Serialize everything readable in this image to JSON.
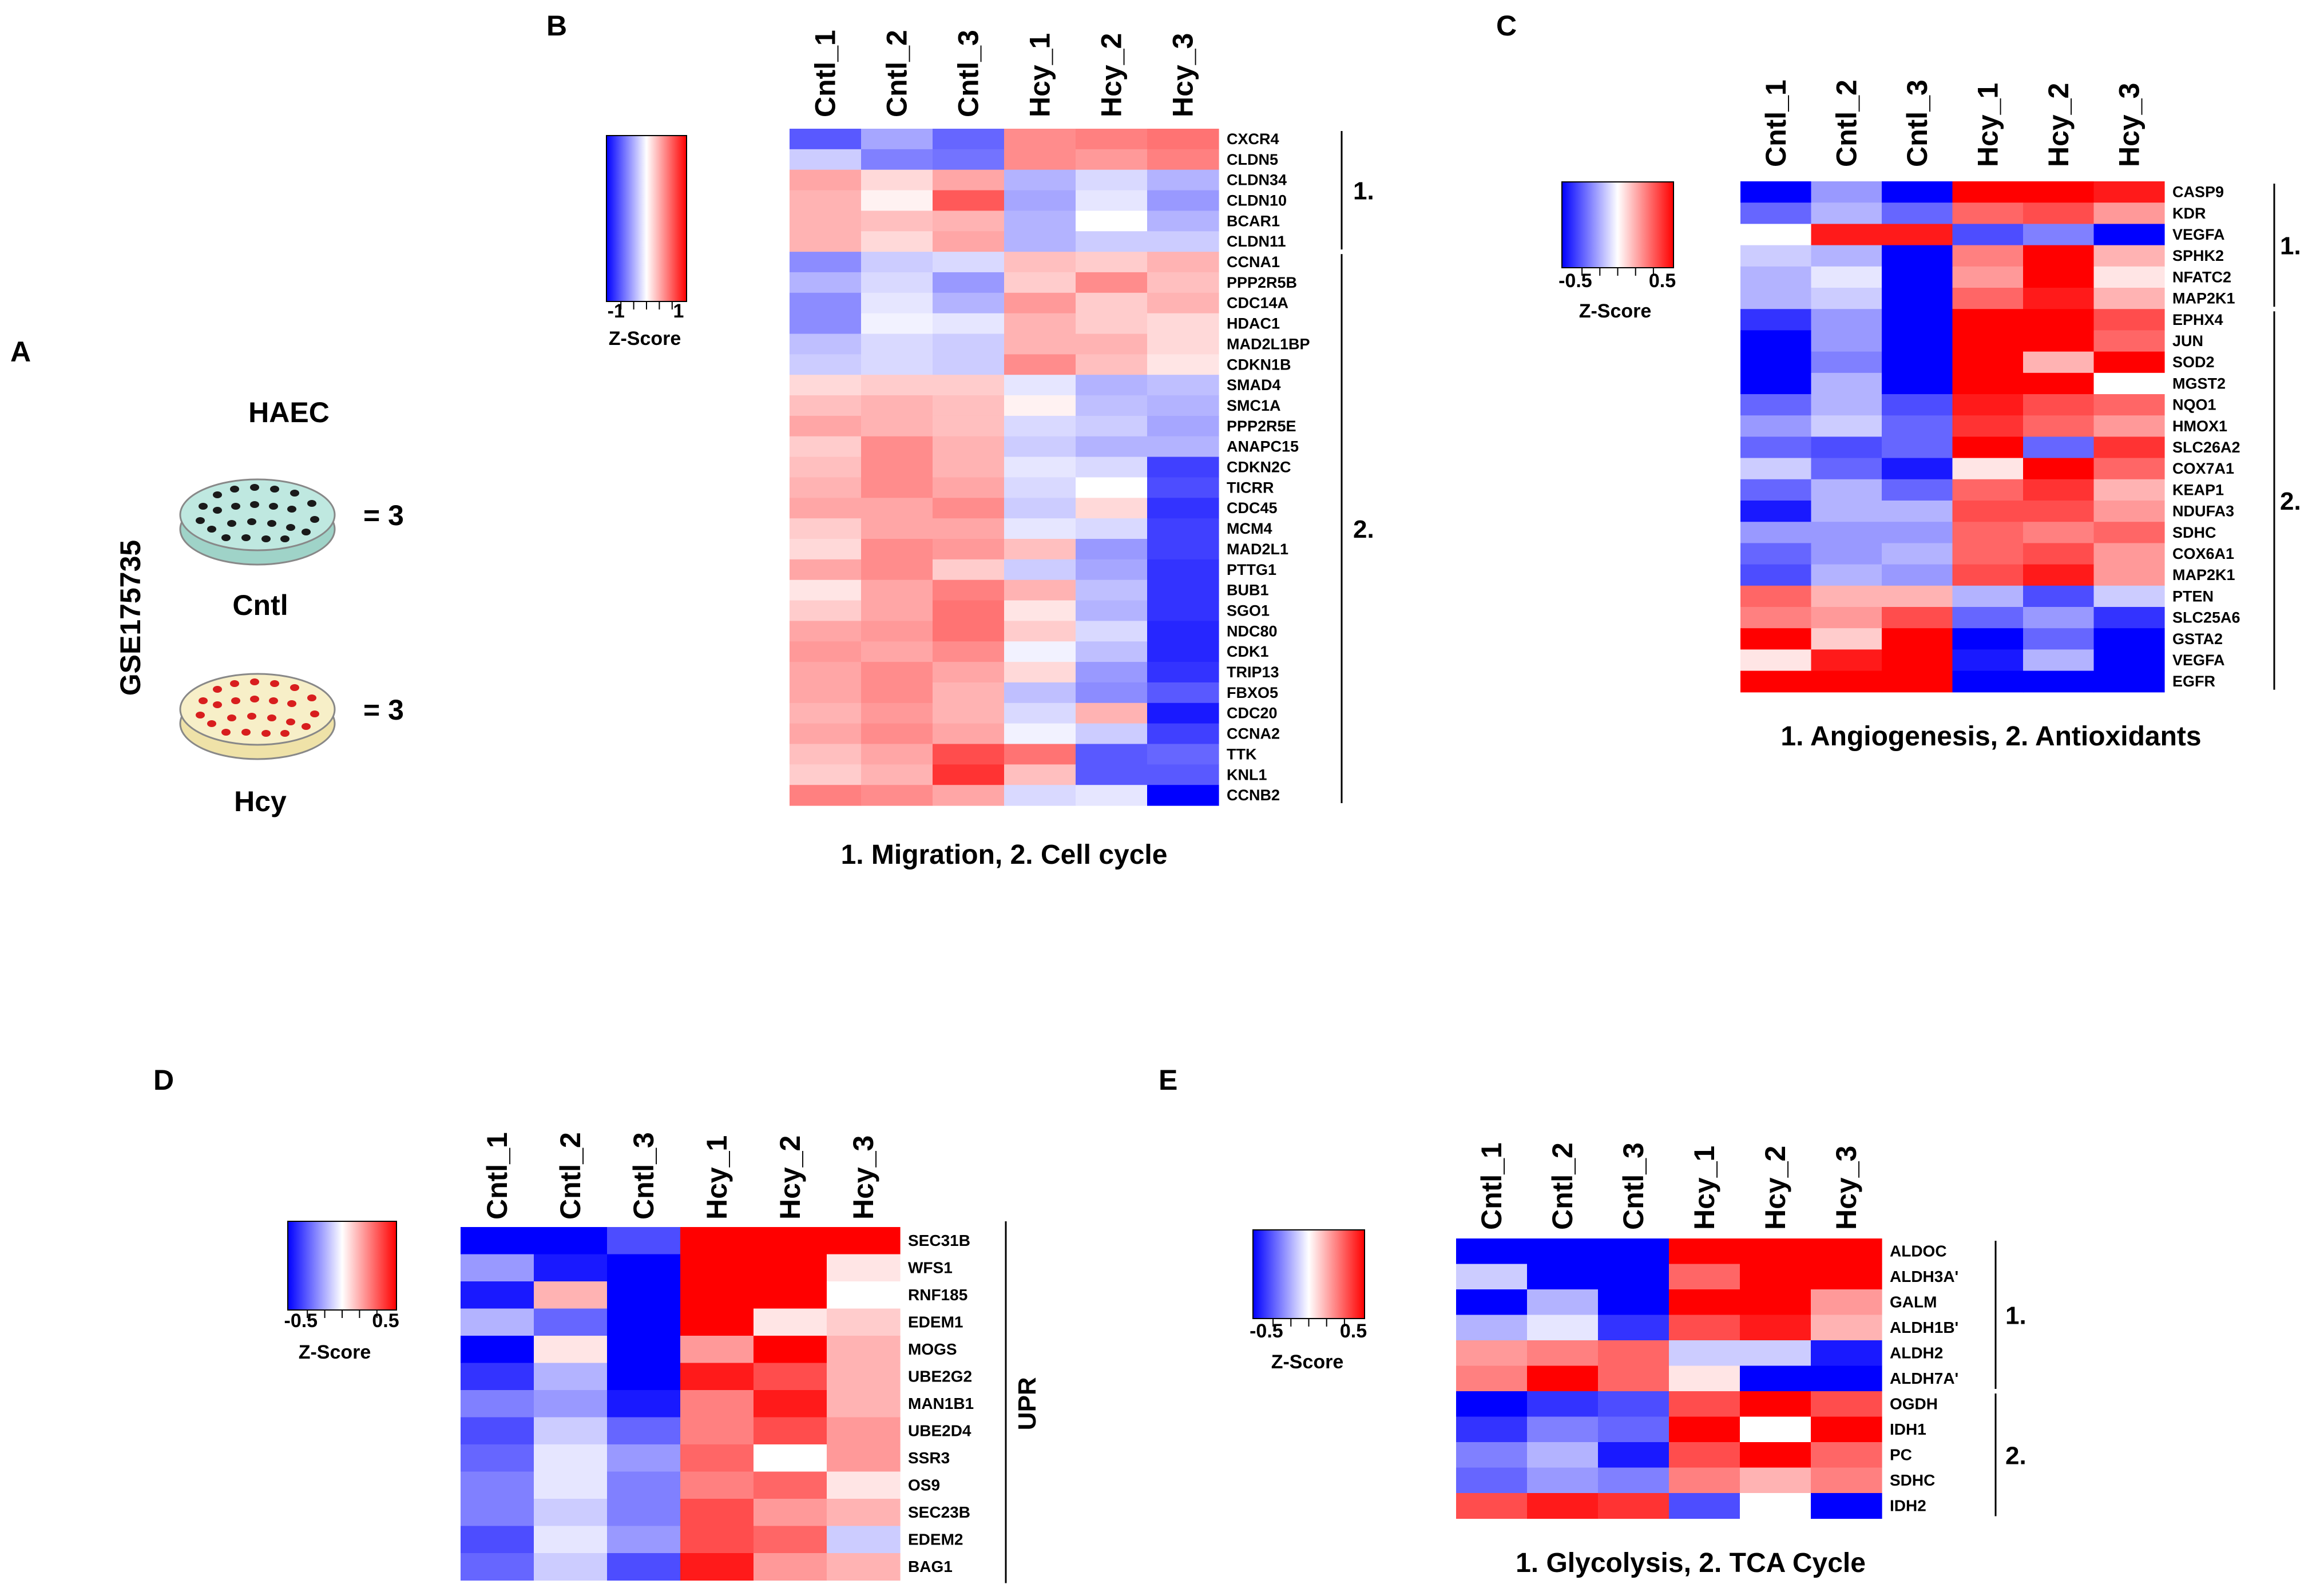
{
  "panel_a": {
    "letter": "A",
    "dataset": "GSE175735",
    "cell_type": "HAEC",
    "groups": [
      {
        "label": "Cntl",
        "count_text": "= 3",
        "plate_color": "#bfe8e0",
        "dot_color": "#1a1a1a"
      },
      {
        "label": "Hcy",
        "count_text": "= 3",
        "plate_color": "#f7efc8",
        "dot_color": "#d81e1e"
      }
    ]
  },
  "colors": {
    "low": "#0000ff",
    "mid": "#ffffff",
    "high": "#ff0000"
  },
  "chart_data": [
    {
      "type": "heatmap",
      "panel": "B",
      "columns": [
        "Cntl_1",
        "Cntl_2",
        "Cntl_3",
        "Hcy_1",
        "Hcy_2",
        "Hcy_3"
      ],
      "legend": {
        "min": -1,
        "max": 1,
        "min_label": "-1",
        "max_label": "1",
        "title": "Z-Score"
      },
      "caption": "1. Migration, 2. Cell cycle",
      "groups": [
        {
          "label": "1.",
          "start": 0,
          "end": 5
        },
        {
          "label": "2.",
          "start": 6,
          "end": 32
        }
      ],
      "rows": [
        "CXCR4",
        "CLDN5",
        "CLDN34",
        "CLDN10",
        "BCAR1",
        "CLDN11",
        "CCNA1",
        "PPP2R5B",
        "CDC14A",
        "HDAC1",
        "MAD2L1BP",
        "CDKN1B",
        "SMAD4",
        "SMC1A",
        "PPP2R5E",
        "ANAPC15",
        "CDKN2C",
        "TICRR",
        "CDC45",
        "MCM4",
        "MAD2L1",
        "PTTG1",
        "BUB1",
        "SGO1",
        "NDC80",
        "CDK1",
        "TRIP13",
        "FBXO5",
        "CDC20",
        "CCNA2",
        "TTK",
        "KNL1",
        "CCNB2"
      ],
      "values": [
        [
          -0.65,
          -0.35,
          -0.6,
          0.45,
          0.5,
          0.55
        ],
        [
          -0.2,
          -0.5,
          -0.55,
          0.45,
          0.4,
          0.5
        ],
        [
          0.35,
          0.15,
          0.35,
          -0.3,
          -0.15,
          -0.3
        ],
        [
          0.3,
          0.05,
          0.65,
          -0.35,
          -0.1,
          -0.4
        ],
        [
          0.3,
          0.25,
          0.3,
          -0.3,
          0.0,
          -0.3
        ],
        [
          0.3,
          0.15,
          0.35,
          -0.3,
          -0.2,
          -0.2
        ],
        [
          -0.45,
          -0.2,
          -0.15,
          0.25,
          0.2,
          0.3
        ],
        [
          -0.3,
          -0.15,
          -0.4,
          0.2,
          0.45,
          0.25
        ],
        [
          -0.45,
          -0.1,
          -0.3,
          0.4,
          0.2,
          0.3
        ],
        [
          -0.45,
          -0.05,
          -0.1,
          0.3,
          0.2,
          0.15
        ],
        [
          -0.25,
          -0.15,
          -0.2,
          0.3,
          0.3,
          0.15
        ],
        [
          -0.2,
          -0.15,
          -0.2,
          0.45,
          0.25,
          0.1
        ],
        [
          0.15,
          0.2,
          0.2,
          -0.1,
          -0.3,
          -0.25
        ],
        [
          0.25,
          0.3,
          0.25,
          0.05,
          -0.25,
          -0.3
        ],
        [
          0.35,
          0.3,
          0.25,
          -0.15,
          -0.2,
          -0.35
        ],
        [
          0.2,
          0.45,
          0.3,
          -0.2,
          -0.3,
          -0.3
        ],
        [
          0.25,
          0.45,
          0.3,
          -0.1,
          -0.15,
          -0.75
        ],
        [
          0.3,
          0.45,
          0.35,
          -0.15,
          0.0,
          -0.7
        ],
        [
          0.35,
          0.35,
          0.45,
          -0.2,
          0.15,
          -0.8
        ],
        [
          0.2,
          0.35,
          0.35,
          -0.1,
          -0.15,
          -0.75
        ],
        [
          0.15,
          0.45,
          0.4,
          0.25,
          -0.4,
          -0.75
        ],
        [
          0.35,
          0.45,
          0.2,
          -0.2,
          -0.35,
          -0.8
        ],
        [
          0.1,
          0.35,
          0.5,
          0.3,
          -0.25,
          -0.8
        ],
        [
          0.2,
          0.35,
          0.55,
          0.1,
          -0.3,
          -0.8
        ],
        [
          0.35,
          0.4,
          0.55,
          0.2,
          -0.15,
          -0.85
        ],
        [
          0.4,
          0.35,
          0.45,
          -0.05,
          -0.25,
          -0.85
        ],
        [
          0.35,
          0.45,
          0.35,
          0.15,
          -0.4,
          -0.8
        ],
        [
          0.35,
          0.45,
          0.3,
          -0.25,
          -0.45,
          -0.65
        ],
        [
          0.3,
          0.4,
          0.3,
          -0.15,
          0.3,
          -0.9
        ],
        [
          0.35,
          0.45,
          0.35,
          -0.05,
          -0.2,
          -0.75
        ],
        [
          0.25,
          0.35,
          0.7,
          0.55,
          -0.65,
          -0.6
        ],
        [
          0.2,
          0.3,
          0.8,
          0.25,
          -0.65,
          -0.65
        ],
        [
          0.5,
          0.45,
          0.35,
          -0.15,
          -0.1,
          -1.0
        ]
      ]
    },
    {
      "type": "heatmap",
      "panel": "C",
      "columns": [
        "Cntl_1",
        "Cntl_2",
        "Cntl_3",
        "Hcy_1",
        "Hcy_2",
        "Hcy_3"
      ],
      "legend": {
        "min": -0.5,
        "max": 0.5,
        "min_label": "-0.5",
        "max_label": "0.5",
        "title": "Z-Score"
      },
      "caption": "1. Angiogenesis, 2. Antioxidants",
      "groups": [
        {
          "label": "1.",
          "start": 0,
          "end": 5
        },
        {
          "label": "2.",
          "start": 6,
          "end": 23
        }
      ],
      "rows": [
        "CASP9",
        "KDR",
        "VEGFA",
        "SPHK2",
        "NFATC2",
        "MAP2K1",
        "EPHX4",
        "JUN",
        "SOD2",
        "MGST2",
        "NQO1",
        "HMOX1",
        "SLC26A2",
        "COX7A1",
        "KEAP1",
        "NDUFA3",
        "SDHC",
        "COX6A1",
        "MAP2K1",
        "PTEN",
        "SLC25A6",
        "GSTA2",
        "VEGFA",
        "EGFR"
      ],
      "values": [
        [
          -0.8,
          -0.2,
          -0.85,
          0.65,
          0.75,
          0.45
        ],
        [
          -0.3,
          -0.15,
          -0.3,
          0.3,
          0.35,
          0.2
        ],
        [
          0.0,
          0.45,
          0.45,
          -0.35,
          -0.25,
          -0.5
        ],
        [
          -0.1,
          -0.15,
          -0.7,
          0.25,
          0.6,
          0.15
        ],
        [
          -0.15,
          -0.05,
          -0.65,
          0.2,
          0.5,
          0.05
        ],
        [
          -0.15,
          -0.1,
          -0.5,
          0.3,
          0.45,
          0.15
        ],
        [
          -0.4,
          -0.2,
          -0.95,
          0.8,
          0.55,
          0.35
        ],
        [
          -0.55,
          -0.2,
          -0.7,
          0.55,
          0.5,
          0.3
        ],
        [
          -0.6,
          -0.25,
          -0.5,
          0.5,
          0.15,
          0.9
        ],
        [
          -0.8,
          -0.15,
          -0.55,
          0.55,
          0.5,
          0.0
        ],
        [
          -0.3,
          -0.15,
          -0.35,
          0.45,
          0.35,
          0.3
        ],
        [
          -0.2,
          -0.1,
          -0.3,
          0.4,
          0.3,
          0.2
        ],
        [
          -0.3,
          -0.35,
          -0.3,
          0.8,
          -0.3,
          0.4
        ],
        [
          -0.1,
          -0.3,
          -0.45,
          0.05,
          0.65,
          0.3
        ],
        [
          -0.3,
          -0.15,
          -0.3,
          0.3,
          0.4,
          0.15
        ],
        [
          -0.45,
          -0.15,
          -0.15,
          0.35,
          0.35,
          0.2
        ],
        [
          -0.2,
          -0.2,
          -0.2,
          0.3,
          0.25,
          0.3
        ],
        [
          -0.3,
          -0.2,
          -0.15,
          0.3,
          0.35,
          0.2
        ],
        [
          -0.35,
          -0.15,
          -0.2,
          0.35,
          0.45,
          0.2
        ],
        [
          0.3,
          0.15,
          0.15,
          -0.15,
          -0.35,
          -0.1
        ],
        [
          0.25,
          0.2,
          0.35,
          -0.3,
          -0.2,
          -0.4
        ],
        [
          0.65,
          0.1,
          0.95,
          -0.8,
          -0.3,
          -0.65
        ],
        [
          0.05,
          0.45,
          0.55,
          -0.45,
          -0.15,
          -0.55
        ],
        [
          0.6,
          0.65,
          0.8,
          -0.6,
          -0.8,
          -0.75
        ]
      ]
    },
    {
      "type": "heatmap",
      "panel": "D",
      "columns": [
        "Cntl_1",
        "Cntl_2",
        "Cntl_3",
        "Hcy_1",
        "Hcy_2",
        "Hcy_3"
      ],
      "legend": {
        "min": -0.5,
        "max": 0.5,
        "min_label": "-0.5",
        "max_label": "0.5",
        "title": "Z-Score"
      },
      "side_label": "UPR",
      "rows": [
        "SEC31B",
        "WFS1",
        "RNF185",
        "EDEM1",
        "MOGS",
        "UBE2G2",
        "MAN1B1",
        "UBE2D4",
        "SSR3",
        "OS9",
        "SEC23B",
        "EDEM2",
        "BAG1"
      ],
      "values": [
        [
          -1.0,
          -0.6,
          -0.35,
          0.8,
          0.7,
          0.75
        ],
        [
          -0.2,
          -0.45,
          -0.8,
          0.6,
          0.85,
          0.05
        ],
        [
          -0.45,
          0.15,
          -0.75,
          0.6,
          0.6,
          0.0
        ],
        [
          -0.15,
          -0.3,
          -0.5,
          0.7,
          0.05,
          0.1
        ],
        [
          -0.55,
          0.05,
          -0.5,
          0.2,
          0.75,
          0.15
        ],
        [
          -0.4,
          -0.15,
          -0.55,
          0.45,
          0.35,
          0.15
        ],
        [
          -0.25,
          -0.2,
          -0.45,
          0.25,
          0.45,
          0.15
        ],
        [
          -0.35,
          -0.1,
          -0.3,
          0.25,
          0.35,
          0.2
        ],
        [
          -0.3,
          -0.05,
          -0.2,
          0.3,
          0.0,
          0.2
        ],
        [
          -0.25,
          -0.05,
          -0.25,
          0.25,
          0.3,
          0.05
        ],
        [
          -0.25,
          -0.1,
          -0.25,
          0.35,
          0.2,
          0.15
        ],
        [
          -0.35,
          -0.05,
          -0.2,
          0.35,
          0.3,
          -0.1
        ],
        [
          -0.3,
          -0.1,
          -0.35,
          0.45,
          0.2,
          0.15
        ]
      ]
    },
    {
      "type": "heatmap",
      "panel": "E",
      "columns": [
        "Cntl_1",
        "Cntl_2",
        "Cntl_3",
        "Hcy_1",
        "Hcy_2",
        "Hcy_3"
      ],
      "legend": {
        "min": -0.5,
        "max": 0.5,
        "min_label": "-0.5",
        "max_label": "0.5",
        "title": "Z-Score"
      },
      "caption": "1. Glycolysis, 2. TCA Cycle",
      "groups": [
        {
          "label": "1.",
          "start": 0,
          "end": 5
        },
        {
          "label": "2.",
          "start": 6,
          "end": 10
        }
      ],
      "rows": [
        "ALDOC",
        "ALDH3A'",
        "GALM",
        "ALDH1B'",
        "ALDH2",
        "ALDH7A'",
        "OGDH",
        "IDH1",
        "PC",
        "SDHC",
        "IDH2"
      ],
      "values": [
        [
          -0.75,
          -0.7,
          -0.95,
          0.8,
          0.95,
          0.7
        ],
        [
          -0.1,
          -0.65,
          -0.55,
          0.3,
          0.55,
          0.65
        ],
        [
          -0.6,
          -0.15,
          -0.6,
          0.65,
          0.55,
          0.2
        ],
        [
          -0.15,
          -0.05,
          -0.4,
          0.35,
          0.45,
          0.15
        ],
        [
          0.2,
          0.25,
          0.3,
          -0.1,
          -0.1,
          -0.45
        ],
        [
          0.25,
          0.65,
          0.3,
          0.05,
          -0.75,
          -0.6
        ],
        [
          -0.55,
          -0.4,
          -0.35,
          0.35,
          0.7,
          0.35
        ],
        [
          -0.4,
          -0.25,
          -0.3,
          0.6,
          0.0,
          0.5
        ],
        [
          -0.25,
          -0.15,
          -0.45,
          0.35,
          0.65,
          0.3
        ],
        [
          -0.3,
          -0.2,
          -0.25,
          0.25,
          0.15,
          0.25
        ],
        [
          0.35,
          0.45,
          0.4,
          -0.35,
          0.0,
          -0.95
        ]
      ]
    }
  ]
}
